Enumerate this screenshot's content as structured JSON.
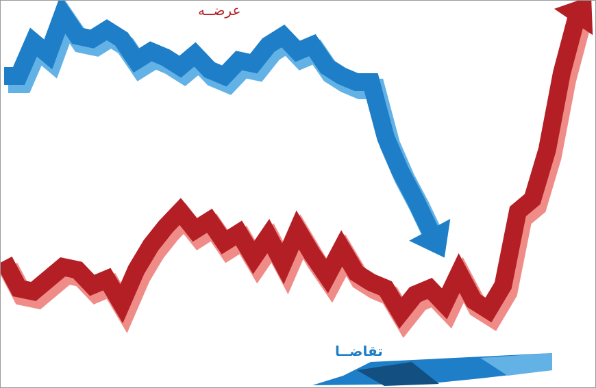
{
  "chart_data": {
    "type": "line",
    "title": "",
    "xlabel": "",
    "ylabel": "",
    "grid": false,
    "legend": "none",
    "series": [
      {
        "name": "عرضــه",
        "color": "#b31f24",
        "highlight": "#f08c88",
        "arrow": "up",
        "points": [
          [
            0,
            20
          ],
          [
            1,
            11
          ],
          [
            2,
            10
          ],
          [
            3,
            14
          ],
          [
            4,
            18
          ],
          [
            5,
            17
          ],
          [
            6,
            12
          ],
          [
            7,
            14
          ],
          [
            8,
            6
          ],
          [
            9,
            17
          ],
          [
            10,
            25
          ],
          [
            11,
            31
          ],
          [
            12,
            36
          ],
          [
            13,
            30
          ],
          [
            14,
            33
          ],
          [
            15,
            26
          ],
          [
            16,
            29
          ],
          [
            17,
            21
          ],
          [
            18,
            28
          ],
          [
            19,
            19
          ],
          [
            20,
            30
          ],
          [
            21,
            22
          ],
          [
            22,
            15
          ],
          [
            23,
            24
          ],
          [
            24,
            16
          ],
          [
            25,
            13
          ],
          [
            26,
            11
          ],
          [
            27,
            3
          ],
          [
            28,
            9
          ],
          [
            29,
            11
          ],
          [
            30,
            6
          ],
          [
            31,
            16
          ],
          [
            32,
            7
          ],
          [
            33,
            4
          ],
          [
            34,
            12
          ],
          [
            35,
            36
          ],
          [
            36,
            40
          ],
          [
            37,
            56
          ],
          [
            38,
            81
          ],
          [
            39,
            99
          ],
          [
            40,
            106
          ]
        ]
      },
      {
        "name": "تقاضــا",
        "color": "#1e7ec8",
        "highlight": "#63b2e6",
        "arrow": "down",
        "points": [
          [
            0,
            80
          ],
          [
            1,
            80
          ],
          [
            2,
            91
          ],
          [
            3,
            87
          ],
          [
            4,
            100
          ],
          [
            5,
            93
          ],
          [
            6,
            92
          ],
          [
            7,
            95
          ],
          [
            8,
            92
          ],
          [
            9,
            85
          ],
          [
            10,
            88
          ],
          [
            11,
            86
          ],
          [
            12,
            83
          ],
          [
            13,
            87
          ],
          [
            14,
            82
          ],
          [
            15,
            80
          ],
          [
            16,
            85
          ],
          [
            17,
            84
          ],
          [
            18,
            90
          ],
          [
            19,
            93
          ],
          [
            20,
            88
          ],
          [
            21,
            90
          ],
          [
            22,
            83
          ],
          [
            23,
            80
          ],
          [
            24,
            78
          ],
          [
            25,
            78
          ],
          [
            26,
            60
          ],
          [
            27,
            49
          ],
          [
            28,
            40
          ],
          [
            29,
            30
          ],
          [
            30,
            21
          ]
        ]
      }
    ],
    "xlim": [
      0,
      40
    ],
    "ylim": [
      0,
      100
    ]
  }
}
